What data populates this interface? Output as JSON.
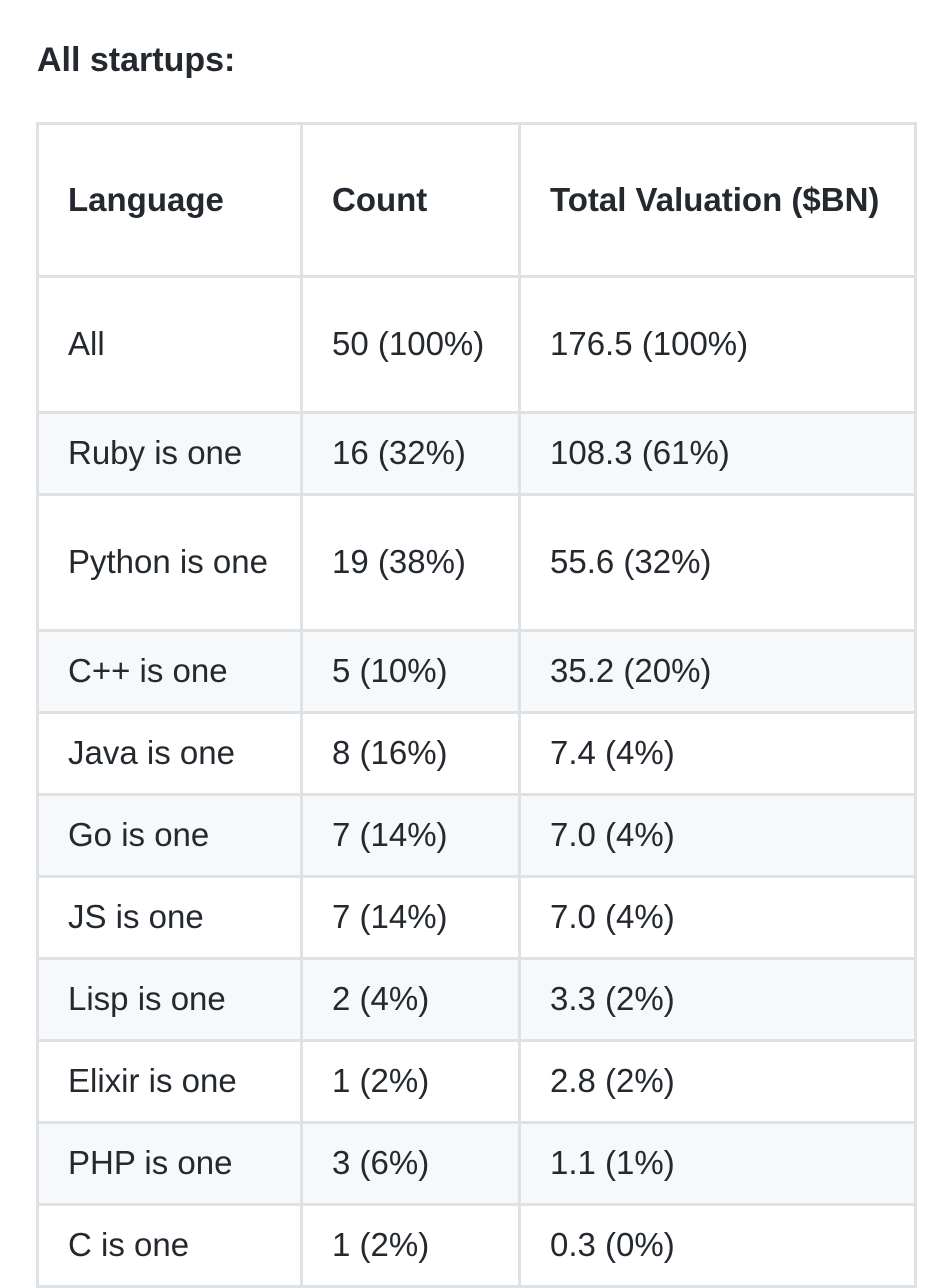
{
  "heading": "All startups:",
  "table": {
    "headers": [
      "Language",
      "Count",
      "Total Valuation ($BN)"
    ],
    "rows": [
      [
        "All",
        "50 (100%)",
        "176.5 (100%)"
      ],
      [
        "Ruby is one",
        "16 (32%)",
        "108.3 (61%)"
      ],
      [
        "Python is one",
        "19 (38%)",
        "55.6 (32%)"
      ],
      [
        "C++ is one",
        "5 (10%)",
        "35.2 (20%)"
      ],
      [
        "Java is one",
        "8 (16%)",
        "7.4 (4%)"
      ],
      [
        "Go is one",
        "7 (14%)",
        "7.0 (4%)"
      ],
      [
        "JS is one",
        "7 (14%)",
        "7.0 (4%)"
      ],
      [
        "Lisp is one",
        "2 (4%)",
        "3.3 (2%)"
      ],
      [
        "Elixir is one",
        "1 (2%)",
        "2.8 (2%)"
      ],
      [
        "PHP is one",
        "3 (6%)",
        "1.1 (1%)"
      ],
      [
        "C is one",
        "1 (2%)",
        "0.3 (0%)"
      ]
    ]
  }
}
